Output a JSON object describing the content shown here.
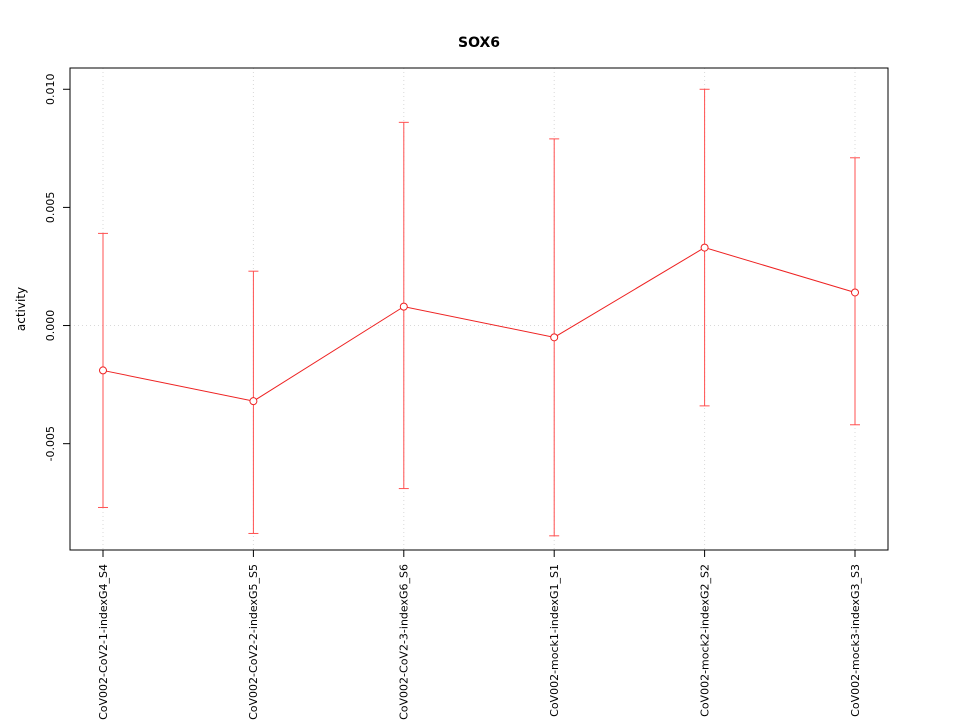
{
  "chart_data": {
    "type": "line",
    "title": "SOX6",
    "ylabel": "activity",
    "xlabel": "",
    "categories": [
      "CoV002-CoV2-1-indexG4_S4",
      "CoV002-CoV2-2-indexG5_S5",
      "CoV002-CoV2-3-indexG6_S6",
      "CoV002-mock1-indexG1_S1",
      "CoV002-mock2-indexG2_S2",
      "CoV002-mock3-indexG3_S3"
    ],
    "series": [
      {
        "name": "activity",
        "values": [
          -0.0019,
          -0.0032,
          0.0008,
          -0.0005,
          0.0033,
          0.0014
        ],
        "upper": [
          0.0039,
          0.0023,
          0.0086,
          0.0079,
          0.01,
          0.0071
        ],
        "lower": [
          -0.0077,
          -0.0088,
          -0.0069,
          -0.0089,
          -0.0034,
          -0.0042
        ]
      }
    ],
    "ylim": [
      -0.0095,
      0.0109
    ],
    "yticks": [
      -0.005,
      0.0,
      0.005,
      0.01
    ],
    "grid": true,
    "legend": "none",
    "colors": {
      "series": "#ee2222",
      "error_bar": "#ff5050",
      "grid": "#d9d9d9",
      "axis": "#000000",
      "background": "#ffffff"
    }
  }
}
